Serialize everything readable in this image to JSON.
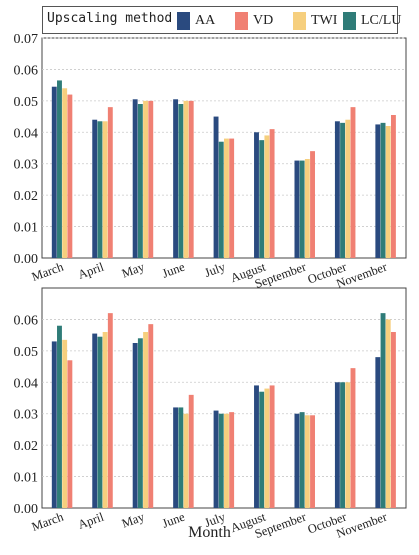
{
  "chart_data": [
    {
      "type": "bar",
      "categories": [
        "March",
        "April",
        "May",
        "June",
        "July",
        "August",
        "September",
        "October",
        "November"
      ],
      "series": [
        {
          "name": "AA",
          "values": [
            0.0545,
            0.044,
            0.0505,
            0.0505,
            0.045,
            0.04,
            0.031,
            0.0435,
            0.0425
          ]
        },
        {
          "name": "LC/LU",
          "values": [
            0.0565,
            0.0435,
            0.049,
            0.049,
            0.037,
            0.0375,
            0.031,
            0.043,
            0.043
          ]
        },
        {
          "name": "TWI",
          "values": [
            0.054,
            0.0435,
            0.05,
            0.05,
            0.038,
            0.039,
            0.0315,
            0.044,
            0.042
          ]
        },
        {
          "name": "VD",
          "values": [
            0.052,
            0.048,
            0.05,
            0.05,
            0.038,
            0.041,
            0.034,
            0.048,
            0.0455
          ]
        }
      ],
      "ylim": [
        0,
        0.07
      ],
      "yticks": [
        "0.00",
        "0.01",
        "0.02",
        "0.03",
        "0.04",
        "0.05",
        "0.06",
        "0.07"
      ],
      "grid": true
    },
    {
      "type": "bar",
      "categories": [
        "March",
        "April",
        "May",
        "June",
        "July",
        "August",
        "September",
        "October",
        "November"
      ],
      "series": [
        {
          "name": "AA",
          "values": [
            0.053,
            0.0555,
            0.0525,
            0.032,
            0.031,
            0.039,
            0.03,
            0.04,
            0.048
          ]
        },
        {
          "name": "LC/LU",
          "values": [
            0.058,
            0.0545,
            0.054,
            0.032,
            0.03,
            0.037,
            0.0305,
            0.04,
            0.062
          ]
        },
        {
          "name": "TWI",
          "values": [
            0.0535,
            0.056,
            0.056,
            0.03,
            0.03,
            0.038,
            0.0295,
            0.04,
            0.06
          ]
        },
        {
          "name": "VD",
          "values": [
            0.047,
            0.062,
            0.0585,
            0.036,
            0.0305,
            0.039,
            0.0295,
            0.0445,
            0.056
          ]
        }
      ],
      "ylim": [
        0,
        0.07
      ],
      "yticks": [
        "0.00",
        "0.01",
        "0.02",
        "0.03",
        "0.04",
        "0.05",
        "0.06"
      ],
      "xlabel": "Month",
      "grid": true
    }
  ],
  "legend": {
    "title": "Upscaling method",
    "entries": [
      {
        "label": "AA",
        "color": "#2a4a7f"
      },
      {
        "label": "VD",
        "color": "#f08073"
      },
      {
        "label": "TWI",
        "color": "#f6cf7e"
      },
      {
        "label": "LC/LU",
        "color": "#2f7c78"
      }
    ]
  },
  "colors": {
    "AA": "#2a4a7f",
    "LC/LU": "#2f7c78",
    "TWI": "#f6cf7e",
    "VD": "#f08073"
  }
}
